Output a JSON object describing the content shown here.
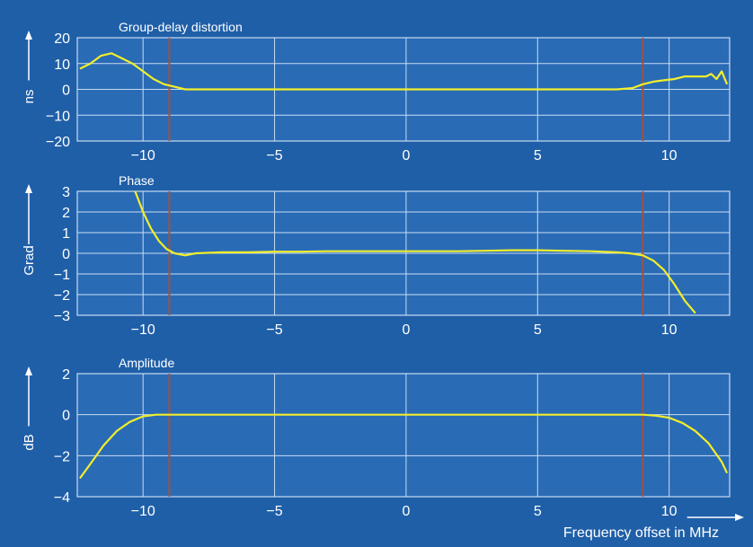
{
  "colors": {
    "background": "#1f5fa8",
    "plot_background": "#2a6bb6",
    "grid": "#c8dcf2",
    "axis_text": "#ffffff",
    "trace": "#f2ee2a",
    "marker": "#a0523c"
  },
  "chart_data": [
    {
      "type": "line",
      "title": "Group-delay distortion",
      "ylabel": "ns",
      "xlabel": "",
      "xlim": [
        -12.5,
        12.3
      ],
      "ylim": [
        -20,
        20
      ],
      "xticks": [
        -10,
        -5,
        0,
        5,
        10
      ],
      "xtick_labels": [
        "−10",
        "−5",
        "0",
        "5",
        "10"
      ],
      "yticks": [
        20,
        10,
        0,
        -10,
        -20
      ],
      "ytick_labels": [
        "20",
        "10",
        "0",
        "−10",
        "−20"
      ],
      "markers_x": [
        -9,
        9
      ],
      "grid": true,
      "series": [
        {
          "x": [
            -12.4,
            -12.0,
            -11.6,
            -11.2,
            -10.8,
            -10.4,
            -10.0,
            -9.6,
            -9.2,
            -8.8,
            -8.4,
            -8.0,
            -7.0,
            -6.0,
            -5.0,
            -4.0,
            -3.0,
            -2.0,
            -1.0,
            0.0,
            1.0,
            2.0,
            3.0,
            4.0,
            5.0,
            6.0,
            7.0,
            8.0,
            8.6,
            9.0,
            9.4,
            9.8,
            10.2,
            10.6,
            11.0,
            11.4,
            11.6,
            11.8,
            12.0,
            12.2
          ],
          "y": [
            8,
            10,
            13,
            14,
            12,
            10,
            7,
            4,
            2,
            1,
            0,
            0,
            0,
            0,
            0,
            0,
            0,
            0,
            0,
            0,
            0,
            0,
            0,
            0,
            0,
            0,
            0,
            0,
            0.5,
            2,
            3,
            3.5,
            4,
            5,
            5,
            5,
            6,
            4,
            7,
            2
          ]
        }
      ]
    },
    {
      "type": "line",
      "title": "Phase",
      "ylabel": "Grad",
      "xlabel": "",
      "xlim": [
        -12.5,
        12.3
      ],
      "ylim": [
        -3,
        3
      ],
      "xticks": [
        -10,
        -5,
        0,
        5,
        10
      ],
      "xtick_labels": [
        "−10",
        "−5",
        "0",
        "5",
        "10"
      ],
      "yticks": [
        3,
        2,
        1,
        0,
        -1,
        -2,
        -3
      ],
      "ytick_labels": [
        "3",
        "2",
        "1",
        "0",
        "−1",
        "−2",
        "−3"
      ],
      "markers_x": [
        -9,
        9
      ],
      "grid": true,
      "series": [
        {
          "x": [
            -10.3,
            -10.0,
            -9.7,
            -9.4,
            -9.1,
            -8.8,
            -8.4,
            -8.0,
            -7.0,
            -6.0,
            -5.0,
            -4.0,
            -3.0,
            -2.0,
            -1.0,
            0.0,
            1.0,
            2.0,
            3.0,
            4.0,
            5.0,
            6.0,
            7.0,
            8.0,
            8.5,
            9.0,
            9.4,
            9.8,
            10.2,
            10.6,
            11.0
          ],
          "y": [
            3.0,
            2.0,
            1.2,
            0.6,
            0.2,
            0.0,
            -0.1,
            0.0,
            0.05,
            0.05,
            0.08,
            0.08,
            0.1,
            0.1,
            0.1,
            0.1,
            0.1,
            0.1,
            0.12,
            0.15,
            0.15,
            0.12,
            0.1,
            0.05,
            0.0,
            -0.1,
            -0.35,
            -0.8,
            -1.5,
            -2.3,
            -2.9
          ]
        }
      ]
    },
    {
      "type": "line",
      "title": "Amplitude",
      "ylabel": "dB",
      "xlabel": "Frequency offset in MHz",
      "xlim": [
        -12.5,
        12.3
      ],
      "ylim": [
        -4,
        2
      ],
      "xticks": [
        -10,
        -5,
        0,
        5,
        10
      ],
      "xtick_labels": [
        "−10",
        "−5",
        "0",
        "5",
        "10"
      ],
      "yticks": [
        2,
        0,
        -2,
        -4
      ],
      "ytick_labels": [
        "2",
        "0",
        "−2",
        "−4"
      ],
      "markers_x": [
        -9,
        9
      ],
      "grid": true,
      "series": [
        {
          "x": [
            -12.4,
            -12.0,
            -11.5,
            -11.0,
            -10.5,
            -10.0,
            -9.5,
            -9.0,
            -8.0,
            -6.0,
            -4.0,
            -2.0,
            0.0,
            2.0,
            4.0,
            6.0,
            8.0,
            9.0,
            9.5,
            10.0,
            10.5,
            11.0,
            11.5,
            12.0,
            12.2
          ],
          "y": [
            -3.1,
            -2.4,
            -1.5,
            -0.8,
            -0.35,
            -0.08,
            0.0,
            0.0,
            0.0,
            0.0,
            0.0,
            0.0,
            0.0,
            0.0,
            0.0,
            0.0,
            0.0,
            0.0,
            -0.05,
            -0.15,
            -0.4,
            -0.8,
            -1.4,
            -2.3,
            -2.85
          ]
        }
      ]
    }
  ]
}
